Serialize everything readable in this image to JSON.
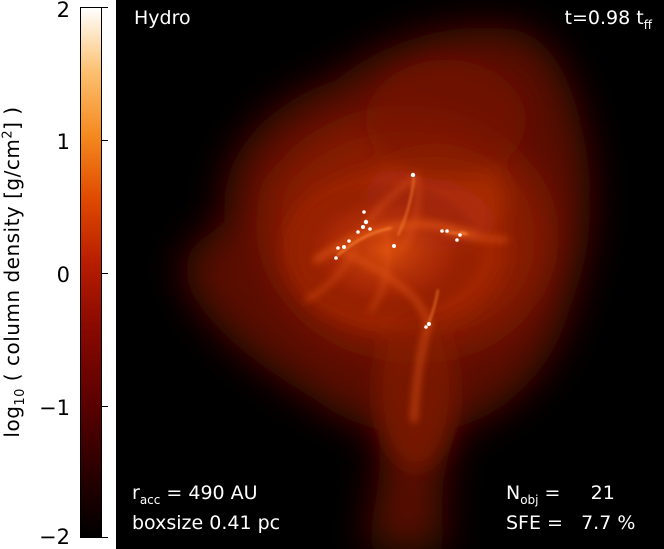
{
  "colorbar": {
    "title_prefix": "log",
    "title_sub": "10",
    "title_main": " ( column density [g/cm",
    "title_sup": "2",
    "title_end": "] )",
    "ticks": [
      "2",
      "1",
      "0",
      "−1",
      "−2"
    ],
    "range": [
      -2,
      2
    ],
    "colormap": [
      "#000000",
      "#5a0000",
      "#b81e00",
      "#f58a20",
      "#ffffff"
    ]
  },
  "overlay": {
    "label_top_left": "Hydro",
    "time_prefix": "t=0.98 t",
    "time_sub": "ff",
    "racc_prefix": "r",
    "racc_sub": "acc",
    "racc_value": " = 490 AU",
    "boxsize": "boxsize 0.41 pc",
    "nobj_prefix": "N",
    "nobj_sub": "obj",
    "nobj_value": " =     21",
    "sfe": "SFE =   7.7 %"
  },
  "image": {
    "description_colors": {
      "background": "#000000",
      "cloud_dark": "#5c0a00",
      "cloud_mid": "#b02a05",
      "filament": "#ff6a20",
      "star": "#ffffff"
    }
  }
}
